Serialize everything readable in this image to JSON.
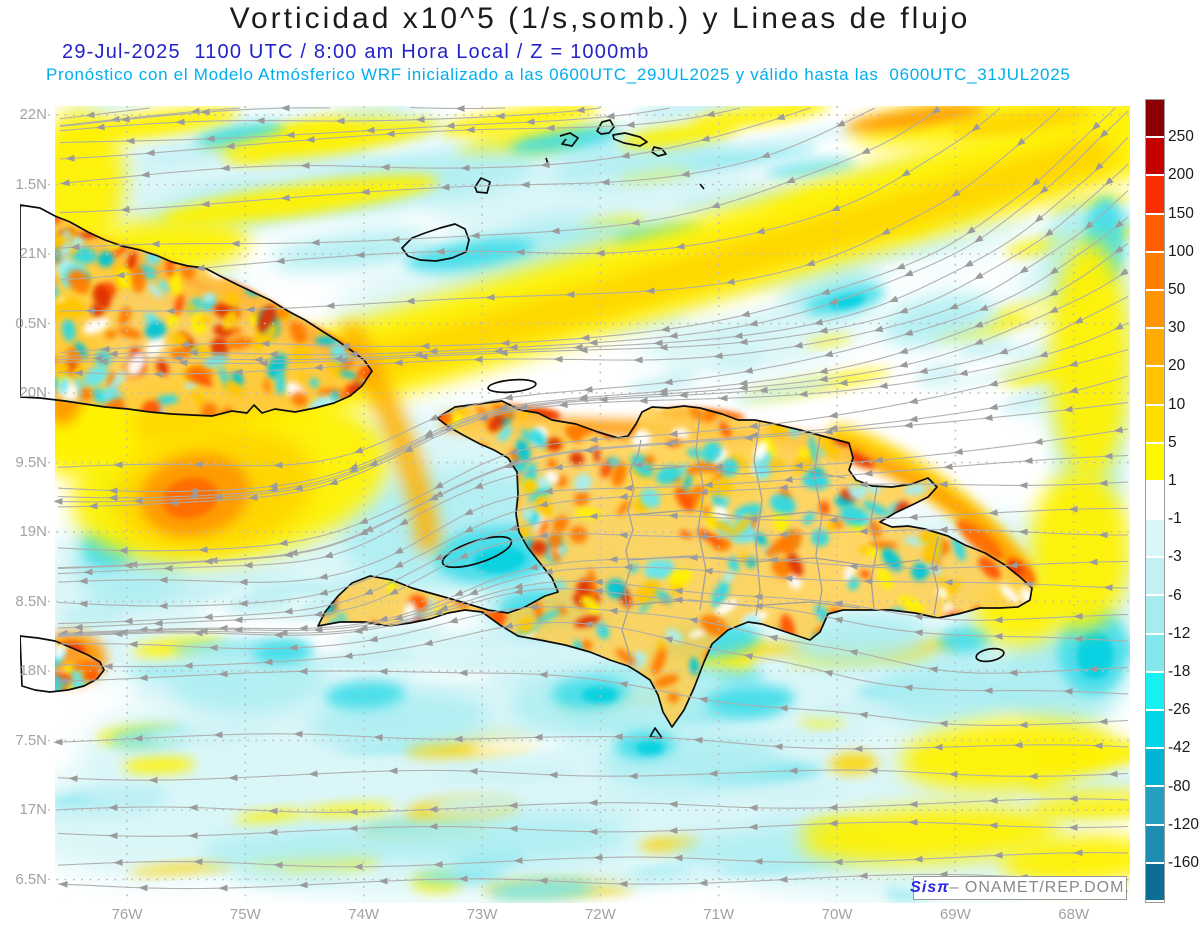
{
  "header": {
    "title": "Vorticidad x10^5 (1/s,somb.) y Lineas de flujo",
    "subtitle_datetime": "29-Jul-2025  1100 UTC / 8:00 am Hora Local / Z = 1000mb",
    "subtitle_model": "Pronóstico con el Modelo Atmósferico WRF inicializado a las 0600UTC_29JUL2025 y válido hasta las  0600UTC_31JUL2025"
  },
  "map": {
    "lat_labels": [
      "22N",
      "1.5N",
      "21N",
      "0.5N",
      "20N",
      "9.5N",
      "19N",
      "8.5N",
      "18N",
      "7.5N",
      "17N",
      "6.5N"
    ],
    "lon_labels": [
      "76W",
      "75W",
      "74W",
      "73W",
      "72W",
      "71W",
      "70W",
      "69W",
      "68W"
    ]
  },
  "colorbar": {
    "tick_labels": [
      "250",
      "200",
      "150",
      "100",
      "50",
      "30",
      "20",
      "10",
      "5",
      "1",
      "-1",
      "-3",
      "-6",
      "-12",
      "-18",
      "-26",
      "-42",
      "-80",
      "-120",
      "-160"
    ],
    "cell_colors": [
      "#8c0005",
      "#c40000",
      "#fb2f00",
      "#ff5d00",
      "#ff7d00",
      "#ff9500",
      "#ffab00",
      "#ffc300",
      "#ffdd00",
      "#fff700",
      "#ffffff",
      "#daf6f7",
      "#c2f1f3",
      "#a6ecef",
      "#83e7ec",
      "#17f0f0",
      "#00d5e8",
      "#00b5d3",
      "#26a0c2",
      "#1d8db2",
      "#0e6d95"
    ]
  },
  "watermark": {
    "brand": "Sisπ",
    "separator": "– ",
    "org": "ONAMET/REP.DOM."
  },
  "theme": {
    "subtitle_datetime_color": "#2323c8",
    "subtitle_model_color": "#00aeef",
    "axis_label_color": "#a3a3a3",
    "tick_label_color": "#1a1a1a",
    "streamline_color": "#adadad",
    "arrow_color": "#9b9b9b",
    "coastline_color": "#0d0d0d",
    "border_color": "#9e9e9e",
    "graticule_color": "#bdbdbd",
    "watermark_brand_color": "#2a2ae6",
    "watermark_text_color": "#8a8a8a"
  }
}
